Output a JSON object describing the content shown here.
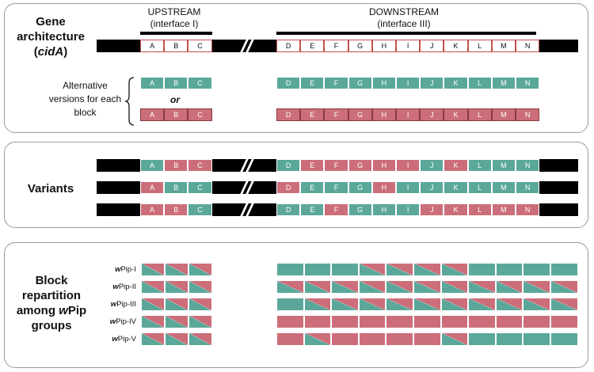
{
  "panel1": {
    "title_line1": "Gene",
    "title_line2": "architecture",
    "title_line3_pre": "(",
    "title_line3_em": "cidA",
    "title_line3_post": ")",
    "upstream_label": "UPSTREAM",
    "upstream_sub": "(interface I)",
    "downstream_label": "DOWNSTREAM",
    "downstream_sub": "(interface III)",
    "alt_line1": "Alternative",
    "alt_line2": "versions for each",
    "alt_line3": "block",
    "or_label": "or"
  },
  "panel2": {
    "title": "Variants"
  },
  "panel3": {
    "title_line1": "Block",
    "title_line2": "repartition",
    "title_line3": "among ",
    "title_line3_em": "w",
    "title_line3_post": "Pip",
    "title_line4": "groups"
  },
  "upstream_blocks": [
    "A",
    "B",
    "C"
  ],
  "downstream_blocks": [
    "D",
    "E",
    "F",
    "G",
    "H",
    "I",
    "J",
    "K",
    "L",
    "M",
    "N"
  ],
  "variants": [
    [
      "g",
      "r",
      "r",
      "g",
      "r",
      "r",
      "r",
      "r",
      "r",
      "g",
      "r",
      "g",
      "g",
      "g"
    ],
    [
      "r",
      "g",
      "g",
      "r",
      "g",
      "g",
      "g",
      "r",
      "g",
      "g",
      "g",
      "g",
      "g",
      "g"
    ],
    [
      "r",
      "r",
      "g",
      "g",
      "g",
      "r",
      "g",
      "g",
      "g",
      "r",
      "r",
      "r",
      "r",
      "r"
    ]
  ],
  "groups": [
    {
      "prefix": "w",
      "name": "Pip-I",
      "up": [
        "d",
        "d",
        "d"
      ],
      "down": [
        "g",
        "g",
        "g",
        "d",
        "d",
        "d",
        "d",
        "g",
        "g",
        "g",
        "g"
      ]
    },
    {
      "prefix": "w",
      "name": "Pip-II",
      "up": [
        "d",
        "d",
        "d"
      ],
      "down": [
        "d",
        "d",
        "d",
        "d",
        "d",
        "d",
        "d",
        "d",
        "d",
        "d",
        "d"
      ]
    },
    {
      "prefix": "w",
      "name": "Pip-III",
      "up": [
        "d",
        "d",
        "d"
      ],
      "down": [
        "g",
        "d",
        "d",
        "d",
        "d",
        "d",
        "d",
        "d",
        "d",
        "d",
        "d"
      ]
    },
    {
      "prefix": "w",
      "name": "Pip-IV",
      "up": [
        "d",
        "d",
        "d"
      ],
      "down": [
        "r",
        "r",
        "r",
        "r",
        "r",
        "r",
        "r",
        "r",
        "r",
        "r",
        "r"
      ]
    },
    {
      "prefix": "w",
      "name": "Pip-V",
      "up": [
        "d",
        "d",
        "d"
      ],
      "down": [
        "r",
        "d",
        "r",
        "r",
        "r",
        "r",
        "d",
        "g",
        "g",
        "g",
        "g"
      ]
    }
  ],
  "colors": {
    "green": "#5ba89a",
    "red": "#cc6e7a",
    "outline": "#c0504d"
  }
}
